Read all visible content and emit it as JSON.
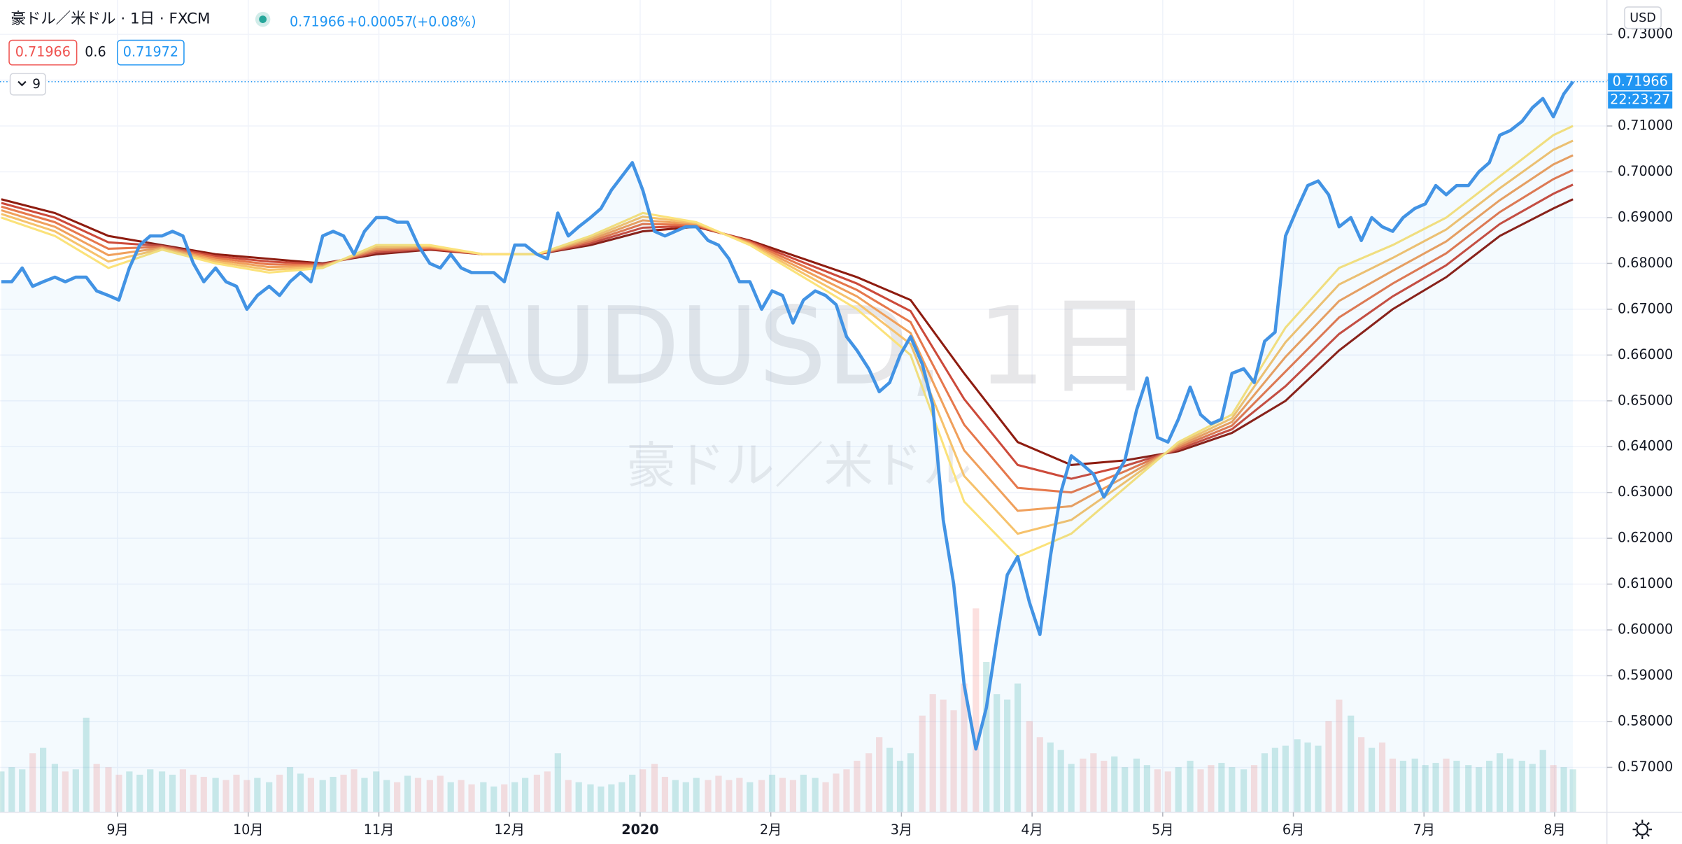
{
  "chart_data": {
    "type": "line",
    "title": "豪ドル／米ドル · 1日 · FXCM",
    "change": "+0.00057",
    "change_pct": "(+0.08%)",
    "bid": 0.71966,
    "spread": 0.6,
    "ask": 0.71972,
    "indicator_length": 9,
    "watermark": "AUDUSD, 1日",
    "watermark_subtitle": "豪ドル／米ドル",
    "currency": "USD",
    "countdown": "22:23:27",
    "grid": true,
    "xlim": [
      8.1,
      20.4
    ],
    "xticks": [
      {
        "value": 9,
        "label": "9月"
      },
      {
        "value": 10,
        "label": "10月"
      },
      {
        "value": 11,
        "label": "11月"
      },
      {
        "value": 12,
        "label": "12月"
      },
      {
        "value": 13,
        "label": "2020"
      },
      {
        "value": 14,
        "label": "2月"
      },
      {
        "value": 15,
        "label": "3月"
      },
      {
        "value": 16,
        "label": "4月"
      },
      {
        "value": 17,
        "label": "5月"
      },
      {
        "value": 18,
        "label": "6月"
      },
      {
        "value": 19,
        "label": "7月"
      },
      {
        "value": 20,
        "label": "8月"
      }
    ],
    "ylim": [
      0.5602,
      0.7375
    ],
    "yticks": [
      {
        "value": 0.57,
        "label": "0.57000"
      },
      {
        "value": 0.58,
        "label": "0.58000"
      },
      {
        "value": 0.59,
        "label": "0.59000"
      },
      {
        "value": 0.6,
        "label": "0.60000"
      },
      {
        "value": 0.61,
        "label": "0.61000"
      },
      {
        "value": 0.62,
        "label": "0.62000"
      },
      {
        "value": 0.63,
        "label": "0.63000"
      },
      {
        "value": 0.64,
        "label": "0.64000"
      },
      {
        "value": 0.65,
        "label": "0.65000"
      },
      {
        "value": 0.66,
        "label": "0.66000"
      },
      {
        "value": 0.67,
        "label": "0.67000"
      },
      {
        "value": 0.68,
        "label": "0.68000"
      },
      {
        "value": 0.69,
        "label": "0.69000"
      },
      {
        "value": 0.7,
        "label": "0.70000"
      },
      {
        "value": 0.71,
        "label": "0.71000"
      },
      {
        "value": 0.72,
        "label": "0.72000"
      },
      {
        "value": 0.73,
        "label": "0.73000"
      }
    ],
    "series": [
      {
        "color": "#4293e4",
        "x": [
          8.11,
          8.19,
          8.27,
          8.35,
          8.43,
          8.52,
          8.6,
          8.68,
          8.76,
          8.84,
          8.93,
          9.01,
          9.09,
          9.17,
          9.25,
          9.34,
          9.42,
          9.5,
          9.58,
          9.66,
          9.75,
          9.83,
          9.91,
          9.99,
          10.07,
          10.16,
          10.24,
          10.32,
          10.4,
          10.48,
          10.57,
          10.65,
          10.73,
          10.81,
          10.89,
          10.98,
          11.06,
          11.14,
          11.22,
          11.3,
          11.39,
          11.47,
          11.55,
          11.63,
          11.71,
          11.8,
          11.88,
          11.96,
          12.04,
          12.12,
          12.21,
          12.29,
          12.37,
          12.45,
          12.53,
          12.62,
          12.7,
          12.78,
          12.86,
          12.94,
          13.02,
          13.11,
          13.19,
          13.27,
          13.35,
          13.43,
          13.52,
          13.6,
          13.68,
          13.76,
          13.84,
          13.93,
          14.01,
          14.09,
          14.17,
          14.25,
          14.34,
          14.42,
          14.5,
          14.58,
          14.66,
          14.75,
          14.83,
          14.91,
          14.99,
          15.07,
          15.16,
          15.24,
          15.32,
          15.4,
          15.48,
          15.57,
          15.65,
          15.73,
          15.81,
          15.89,
          15.98,
          16.06,
          16.14,
          16.22,
          16.3,
          16.39,
          16.47,
          16.55,
          16.63,
          16.71,
          16.8,
          16.88,
          16.96,
          17.04,
          17.12,
          17.21,
          17.29,
          17.37,
          17.45,
          17.53,
          17.62,
          17.7,
          17.78,
          17.86,
          17.94,
          18.03,
          18.11,
          18.19,
          18.27,
          18.35,
          18.44,
          18.52,
          18.6,
          18.68,
          18.76,
          18.84,
          18.93,
          19.01,
          19.09,
          19.17,
          19.25,
          19.34,
          19.42,
          19.5,
          19.58,
          19.66,
          19.75,
          19.83,
          19.91,
          19.99,
          20.07,
          20.14
        ],
        "values": [
          0.676,
          0.676,
          0.679,
          0.675,
          0.676,
          0.677,
          0.676,
          0.677,
          0.677,
          0.674,
          0.673,
          0.672,
          0.679,
          0.684,
          0.686,
          0.686,
          0.687,
          0.686,
          0.68,
          0.676,
          0.679,
          0.676,
          0.675,
          0.67,
          0.673,
          0.675,
          0.673,
          0.676,
          0.678,
          0.676,
          0.686,
          0.687,
          0.686,
          0.682,
          0.687,
          0.69,
          0.69,
          0.689,
          0.689,
          0.684,
          0.68,
          0.679,
          0.682,
          0.679,
          0.678,
          0.678,
          0.678,
          0.676,
          0.684,
          0.684,
          0.682,
          0.681,
          0.691,
          0.686,
          0.688,
          0.69,
          0.692,
          0.696,
          0.699,
          0.702,
          0.696,
          0.687,
          0.686,
          0.687,
          0.688,
          0.688,
          0.685,
          0.684,
          0.681,
          0.676,
          0.676,
          0.67,
          0.674,
          0.673,
          0.667,
          0.672,
          0.674,
          0.673,
          0.671,
          0.664,
          0.661,
          0.657,
          0.652,
          0.654,
          0.66,
          0.664,
          0.658,
          0.649,
          0.624,
          0.61,
          0.588,
          0.574,
          0.583,
          0.598,
          0.612,
          0.616,
          0.606,
          0.599,
          0.616,
          0.63,
          0.638,
          0.636,
          0.634,
          0.629,
          0.633,
          0.637,
          0.648,
          0.655,
          0.642,
          0.641,
          0.646,
          0.653,
          0.647,
          0.645,
          0.646,
          0.656,
          0.657,
          0.654,
          0.663,
          0.665,
          0.686,
          0.692,
          0.697,
          0.698,
          0.695,
          0.688,
          0.69,
          0.685,
          0.69,
          0.688,
          0.687,
          0.69,
          0.692,
          0.693,
          0.697,
          0.695,
          0.697,
          0.697,
          0.7,
          0.702,
          0.708,
          0.709,
          0.711,
          0.714,
          0.716,
          0.712,
          0.717,
          0.71966
        ]
      }
    ],
    "volume": [
      38,
      42,
      40,
      55,
      60,
      45,
      38,
      40,
      88,
      45,
      42,
      35,
      38,
      35,
      40,
      38,
      35,
      40,
      35,
      33,
      32,
      30,
      35,
      30,
      32,
      28,
      35,
      42,
      36,
      32,
      30,
      33,
      35,
      40,
      32,
      38,
      30,
      28,
      34,
      32,
      30,
      34,
      28,
      30,
      26,
      28,
      24,
      26,
      28,
      32,
      35,
      38,
      55,
      30,
      28,
      26,
      24,
      26,
      28,
      35,
      40,
      45,
      33,
      30,
      28,
      32,
      30,
      34,
      30,
      32,
      28,
      30,
      35,
      32,
      30,
      35,
      32,
      28,
      36,
      40,
      48,
      55,
      70,
      60,
      48,
      55,
      90,
      110,
      105,
      95,
      120,
      190,
      140,
      110,
      105,
      120,
      85,
      70,
      65,
      58,
      45,
      50,
      55,
      48,
      52,
      42,
      50,
      44,
      40,
      38,
      42,
      48,
      40,
      44,
      46,
      42,
      40,
      44,
      55,
      60,
      62,
      68,
      65,
      62,
      85,
      105,
      90,
      70,
      60,
      65,
      50,
      48,
      50,
      44,
      46,
      50,
      48,
      44,
      42,
      48,
      55,
      50,
      48,
      45,
      58,
      44,
      42,
      40
    ],
    "volume_colors": {
      "up": "rgba(38,166,154,0.22)",
      "down": "rgba(239,83,80,0.18)"
    },
    "ribbon": {
      "x": [
        8.11,
        8.52,
        8.93,
        9.34,
        9.75,
        10.16,
        10.57,
        10.98,
        11.39,
        11.8,
        12.21,
        12.62,
        13.02,
        13.43,
        13.84,
        14.25,
        14.66,
        15.07,
        15.48,
        15.89,
        16.3,
        16.71,
        17.12,
        17.53,
        17.94,
        18.35,
        18.76,
        19.17,
        19.58,
        19.99,
        20.14
      ],
      "series": [
        {
          "color": "#fbe27a",
          "values": [
            0.69,
            0.686,
            0.679,
            0.683,
            0.68,
            0.678,
            0.679,
            0.684,
            0.684,
            0.682,
            0.682,
            0.686,
            0.691,
            0.689,
            0.684,
            0.677,
            0.67,
            0.66,
            0.628,
            0.616,
            0.621,
            0.631,
            0.641,
            0.647,
            0.666,
            0.679,
            0.684,
            0.69,
            0.699,
            0.708,
            0.71
          ]
        },
        {
          "color": "#f6c26c",
          "values": [
            0.6908,
            0.687,
            0.6804,
            0.6832,
            0.6804,
            0.6786,
            0.6792,
            0.6836,
            0.6838,
            0.682,
            0.682,
            0.6856,
            0.6902,
            0.6888,
            0.6842,
            0.6778,
            0.6714,
            0.6624,
            0.6336,
            0.621,
            0.624,
            0.6322,
            0.6406,
            0.6462,
            0.6628,
            0.6754,
            0.6812,
            0.6874,
            0.6964,
            0.7048,
            0.7068
          ]
        },
        {
          "color": "#f0a05c",
          "values": [
            0.6916,
            0.688,
            0.6818,
            0.6834,
            0.6808,
            0.6792,
            0.6794,
            0.6832,
            0.6836,
            0.682,
            0.682,
            0.6852,
            0.6894,
            0.6886,
            0.6844,
            0.6786,
            0.6728,
            0.6648,
            0.6392,
            0.626,
            0.627,
            0.6334,
            0.6402,
            0.6454,
            0.6596,
            0.6718,
            0.6784,
            0.6848,
            0.6938,
            0.7016,
            0.7036
          ]
        },
        {
          "color": "#e6784c",
          "values": [
            0.6924,
            0.689,
            0.6832,
            0.6836,
            0.6812,
            0.6798,
            0.6796,
            0.6828,
            0.6834,
            0.682,
            0.682,
            0.6848,
            0.6886,
            0.6884,
            0.6846,
            0.6794,
            0.6742,
            0.6672,
            0.6448,
            0.631,
            0.63,
            0.6346,
            0.6398,
            0.6446,
            0.6564,
            0.6682,
            0.6756,
            0.6822,
            0.6912,
            0.6984,
            0.7004
          ]
        },
        {
          "color": "#cc4a3a",
          "values": [
            0.6932,
            0.69,
            0.6846,
            0.6838,
            0.6816,
            0.6804,
            0.6798,
            0.6824,
            0.6832,
            0.682,
            0.682,
            0.6844,
            0.6878,
            0.6882,
            0.6848,
            0.6802,
            0.6756,
            0.6696,
            0.6504,
            0.636,
            0.633,
            0.6358,
            0.6394,
            0.6438,
            0.6532,
            0.6646,
            0.6728,
            0.6796,
            0.6886,
            0.6952,
            0.6972
          ]
        },
        {
          "color": "#8e1c10",
          "values": [
            0.694,
            0.691,
            0.686,
            0.684,
            0.682,
            0.681,
            0.68,
            0.682,
            0.683,
            0.682,
            0.682,
            0.684,
            0.687,
            0.688,
            0.685,
            0.681,
            0.677,
            0.672,
            0.656,
            0.641,
            0.636,
            0.637,
            0.639,
            0.643,
            0.65,
            0.661,
            0.67,
            0.677,
            0.686,
            0.692,
            0.694
          ]
        }
      ]
    }
  }
}
